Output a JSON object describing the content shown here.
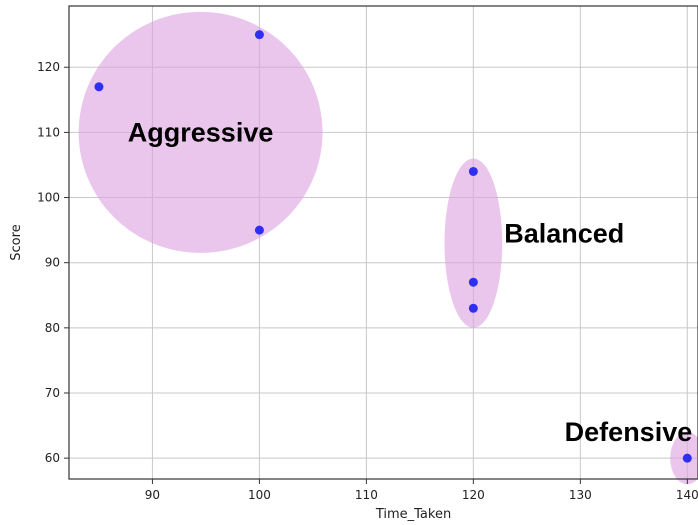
{
  "chart_data": {
    "type": "scatter",
    "xlabel": "Time_Taken",
    "ylabel": "Score",
    "xlim": [
      82.2,
      141
    ],
    "ylim": [
      56.8,
      129.4
    ],
    "grid": true,
    "xticks": [
      90,
      100,
      110,
      120,
      130,
      140
    ],
    "yticks": [
      60,
      70,
      80,
      90,
      100,
      110,
      120
    ],
    "points": [
      {
        "x": 85,
        "y": 117
      },
      {
        "x": 100,
        "y": 125
      },
      {
        "x": 100,
        "y": 95
      },
      {
        "x": 120,
        "y": 104
      },
      {
        "x": 120,
        "y": 87
      },
      {
        "x": 120,
        "y": 83
      },
      {
        "x": 140,
        "y": 60
      }
    ],
    "point_color": "#2f2ff2",
    "clusters": [
      {
        "label": "Aggressive",
        "cx": 94.5,
        "cy": 110,
        "rx": 11.4,
        "ry": 18.5,
        "label_x": 94.5,
        "label_y": 110
      },
      {
        "label": "Balanced",
        "cx": 120,
        "cy": 93,
        "rx": 2.7,
        "ry": 13,
        "label_x": 128.5,
        "label_y": 94.5
      },
      {
        "label": "Defensive",
        "cx": 140,
        "cy": 60,
        "rx": 1.6,
        "ry": 4,
        "label_x": 134.5,
        "label_y": 64
      }
    ],
    "cluster_color": "#dda3e0"
  }
}
